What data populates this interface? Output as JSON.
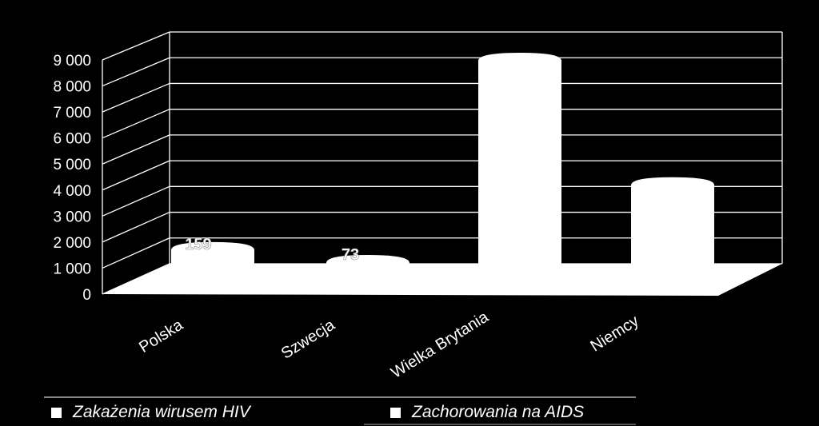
{
  "chart_data": {
    "type": "bar",
    "categories": [
      "Polska",
      "Szwecja",
      "Wielka Brytania",
      "Niemcy"
    ],
    "series": [
      {
        "name": "Zakażenia wirusem HIV",
        "values": [
          1300,
          800,
          8600,
          3800
        ]
      },
      {
        "name": "Zachorowania na AIDS",
        "values": [
          159,
          73,
          0,
          0
        ]
      }
    ],
    "data_labels": [
      "159",
      "73"
    ],
    "y_ticks": [
      "0",
      "1 000",
      "2 000",
      "3 000",
      "4 000",
      "5 000",
      "6 000",
      "7 000",
      "8 000",
      "9 000"
    ],
    "ylim": [
      0,
      9000
    ],
    "grid": true,
    "legend": "bottom",
    "colors": {
      "background": "#000000",
      "bars": "#ffffff",
      "grid": "#ffffff",
      "text": "#ffffff"
    }
  },
  "legend": {
    "item1": "Zakażenia wirusem HIV",
    "item2": "Zachorowania na AIDS"
  }
}
